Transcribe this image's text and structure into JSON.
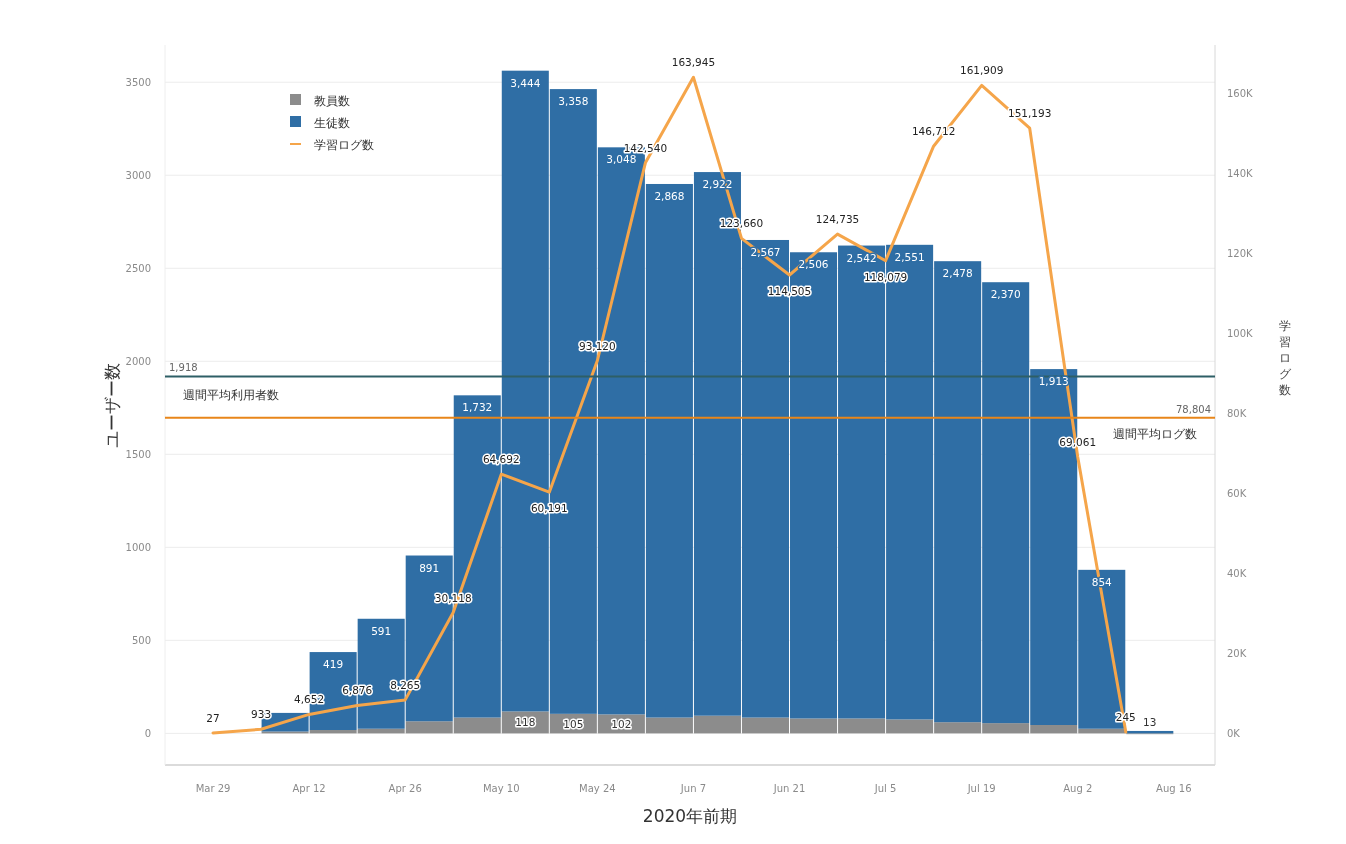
{
  "chart_data": {
    "type": "bar",
    "stacked": true,
    "xlabel": "2020年前期",
    "ylabel": "ユーザー数",
    "y2label": "学習ログ数",
    "xlim": [
      "2020-03-22",
      "2020-08-22"
    ],
    "xticks": [
      {
        "value": "2020-03-29",
        "label": "Mar 29"
      },
      {
        "value": "2020-04-12",
        "label": "Apr 12"
      },
      {
        "value": "2020-04-26",
        "label": "Apr 26"
      },
      {
        "value": "2020-05-10",
        "label": "May 10"
      },
      {
        "value": "2020-05-24",
        "label": "May 24"
      },
      {
        "value": "2020-06-07",
        "label": "Jun 7"
      },
      {
        "value": "2020-06-21",
        "label": "Jun 21"
      },
      {
        "value": "2020-07-05",
        "label": "Jul 5"
      },
      {
        "value": "2020-07-19",
        "label": "Jul 19"
      },
      {
        "value": "2020-08-02",
        "label": "Aug 2"
      },
      {
        "value": "2020-08-16",
        "label": "Aug 16"
      }
    ],
    "ylim": [
      -170,
      3700
    ],
    "yticks": [
      0,
      500,
      1000,
      1500,
      2000,
      2500,
      3000,
      3500
    ],
    "y2lim": [
      -8000,
      172000
    ],
    "y2ticks": [
      {
        "value": 0,
        "label": "0K"
      },
      {
        "value": 20000,
        "label": "20K"
      },
      {
        "value": 40000,
        "label": "40K"
      },
      {
        "value": 60000,
        "label": "60K"
      },
      {
        "value": 80000,
        "label": "80K"
      },
      {
        "value": 100000,
        "label": "100K"
      },
      {
        "value": 120000,
        "label": "120K"
      },
      {
        "value": 140000,
        "label": "140K"
      },
      {
        "value": 160000,
        "label": "160K"
      }
    ],
    "grid": "y",
    "legend": "top left",
    "annotations": [
      "1,918",
      "78,804"
    ],
    "series": [
      {
        "name": "教員数",
        "type": "bar",
        "color": "#8c8c8c",
        "x": [
          "2020-04-08T12:00",
          "2020-04-15T12:00",
          "2020-04-22T12:00",
          "2020-04-29T12:00",
          "2020-05-06T12:00",
          "2020-05-13T12:00",
          "2020-05-20T12:00",
          "2020-05-27T12:00",
          "2020-06-03T12:00",
          "2020-06-10T12:00",
          "2020-06-17T12:00",
          "2020-06-24T12:00",
          "2020-07-01T12:00",
          "2020-07-08T12:00",
          "2020-07-15T12:00",
          "2020-07-22T12:00",
          "2020-07-29T12:00",
          "2020-08-05T12:00",
          "2020-08-12T12:00"
        ],
        "values": [
          10,
          18,
          25,
          65,
          85,
          118,
          105,
          102,
          85,
          95,
          85,
          80,
          80,
          75,
          60,
          55,
          45,
          25,
          0
        ],
        "value_labels": [
          null,
          null,
          null,
          null,
          null,
          "118",
          "105",
          "102",
          null,
          null,
          null,
          null,
          null,
          null,
          null,
          null,
          null,
          null,
          null
        ]
      },
      {
        "name": "生徒数",
        "type": "bar",
        "color": "#2f6ea5",
        "x": [
          "2020-04-08T12:00",
          "2020-04-15T12:00",
          "2020-04-22T12:00",
          "2020-04-29T12:00",
          "2020-05-06T12:00",
          "2020-05-13T12:00",
          "2020-05-20T12:00",
          "2020-05-27T12:00",
          "2020-06-03T12:00",
          "2020-06-10T12:00",
          "2020-06-17T12:00",
          "2020-06-24T12:00",
          "2020-07-01T12:00",
          "2020-07-08T12:00",
          "2020-07-15T12:00",
          "2020-07-22T12:00",
          "2020-07-29T12:00",
          "2020-08-05T12:00",
          "2020-08-12T12:00"
        ],
        "values": [
          100,
          419,
          591,
          891,
          1732,
          3444,
          3358,
          3048,
          2868,
          2922,
          2567,
          2506,
          2542,
          2551,
          2478,
          2370,
          1913,
          854,
          13
        ],
        "value_labels": [
          null,
          "419",
          "591",
          "891",
          "1,732",
          "3,444",
          "3,358",
          "3,048",
          "2,868",
          "2,922",
          "2,567",
          "2,506",
          "2,542",
          "2,551",
          "2,478",
          "2,370",
          "1,913",
          "854",
          "13"
        ]
      },
      {
        "name": "学習ログ数",
        "type": "line",
        "axis": "y2",
        "color": "#f5a54a",
        "x": [
          "2020-03-29",
          "2020-04-05",
          "2020-04-12",
          "2020-04-19",
          "2020-04-26",
          "2020-05-03",
          "2020-05-10",
          "2020-05-17",
          "2020-05-24",
          "2020-05-31",
          "2020-06-07",
          "2020-06-14",
          "2020-06-21",
          "2020-06-28",
          "2020-07-05",
          "2020-07-12",
          "2020-07-19",
          "2020-07-26",
          "2020-08-02",
          "2020-08-09"
        ],
        "values": [
          27,
          933,
          4652,
          6876,
          8265,
          30118,
          64692,
          60191,
          93120,
          142540,
          163945,
          123660,
          114505,
          124735,
          118079,
          146712,
          161909,
          151193,
          69061,
          245
        ],
        "value_labels": [
          "27",
          "933",
          "4,652",
          "6,876",
          "8,265",
          "30,118",
          "64,692",
          "60,191",
          "93,120",
          "142,540",
          "163,945",
          "123,660",
          "114,505",
          "124,735",
          "118,079",
          "146,712",
          "161,909",
          "151,193",
          "69,061",
          "245"
        ]
      }
    ],
    "ref_lines": [
      {
        "axis": "y",
        "value": 1918,
        "label": "週間平均利用者数",
        "color": "#2e5f66"
      },
      {
        "axis": "y2",
        "value": 78804,
        "label": "週間平均ログ数",
        "color": "#e8861a"
      }
    ]
  }
}
